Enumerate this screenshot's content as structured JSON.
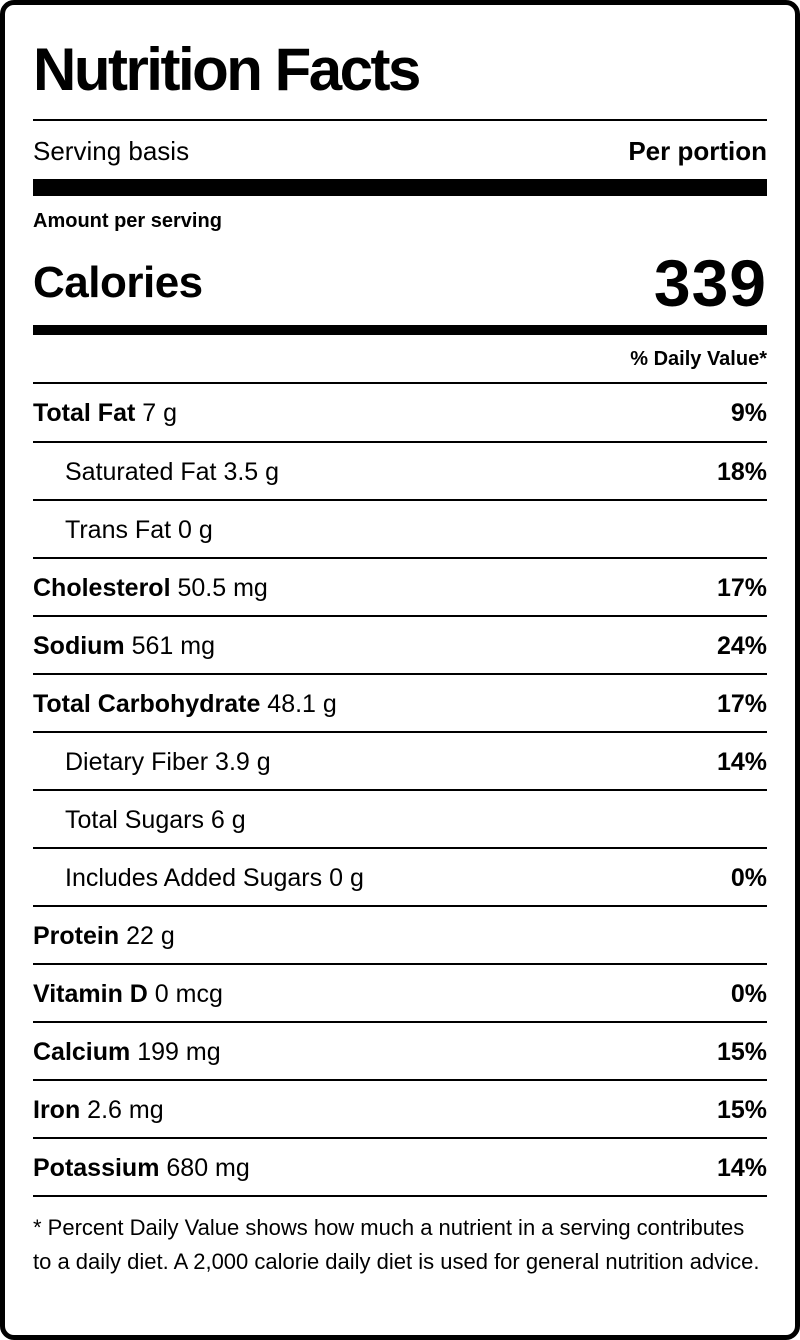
{
  "title": "Nutrition Facts",
  "serving": {
    "basis_label": "Serving basis",
    "per_label": "Per portion"
  },
  "amount_per_serving": "Amount per serving",
  "calories": {
    "label": "Calories",
    "value": "339"
  },
  "daily_value_header": "% Daily Value*",
  "nutrients": [
    {
      "name": "Total Fat",
      "amount": "7 g",
      "dv": "9%",
      "bold": true
    },
    {
      "name": "Saturated Fat",
      "amount": "3.5 g",
      "dv": "18%",
      "bold": false
    },
    {
      "name": "Trans Fat",
      "amount": "0 g",
      "dv": "",
      "bold": false
    },
    {
      "name": "Cholesterol",
      "amount": "50.5 mg",
      "dv": "17%",
      "bold": true
    },
    {
      "name": "Sodium",
      "amount": "561 mg",
      "dv": "24%",
      "bold": true
    },
    {
      "name": "Total Carbohydrate",
      "amount": "48.1 g",
      "dv": "17%",
      "bold": true
    },
    {
      "name": "Dietary Fiber",
      "amount": "3.9 g",
      "dv": "14%",
      "bold": false
    },
    {
      "name": "Total Sugars",
      "amount": "6 g",
      "dv": "",
      "bold": false
    },
    {
      "name": "Includes Added Sugars",
      "amount": "0 g",
      "dv": "0%",
      "bold": false
    },
    {
      "name": "Protein",
      "amount": "22 g",
      "dv": "",
      "bold": true
    },
    {
      "name": "Vitamin D",
      "amount": "0 mcg",
      "dv": "0%",
      "bold": true
    },
    {
      "name": "Calcium",
      "amount": "199 mg",
      "dv": "15%",
      "bold": true
    },
    {
      "name": "Iron",
      "amount": "2.6 mg",
      "dv": "15%",
      "bold": true
    },
    {
      "name": "Potassium",
      "amount": "680 mg",
      "dv": "14%",
      "bold": true
    }
  ],
  "footnote": "* Percent Daily Value shows how much a nutrient in a serving contributes to a daily diet. A 2,000 calorie daily diet is used for general nutrition advice."
}
